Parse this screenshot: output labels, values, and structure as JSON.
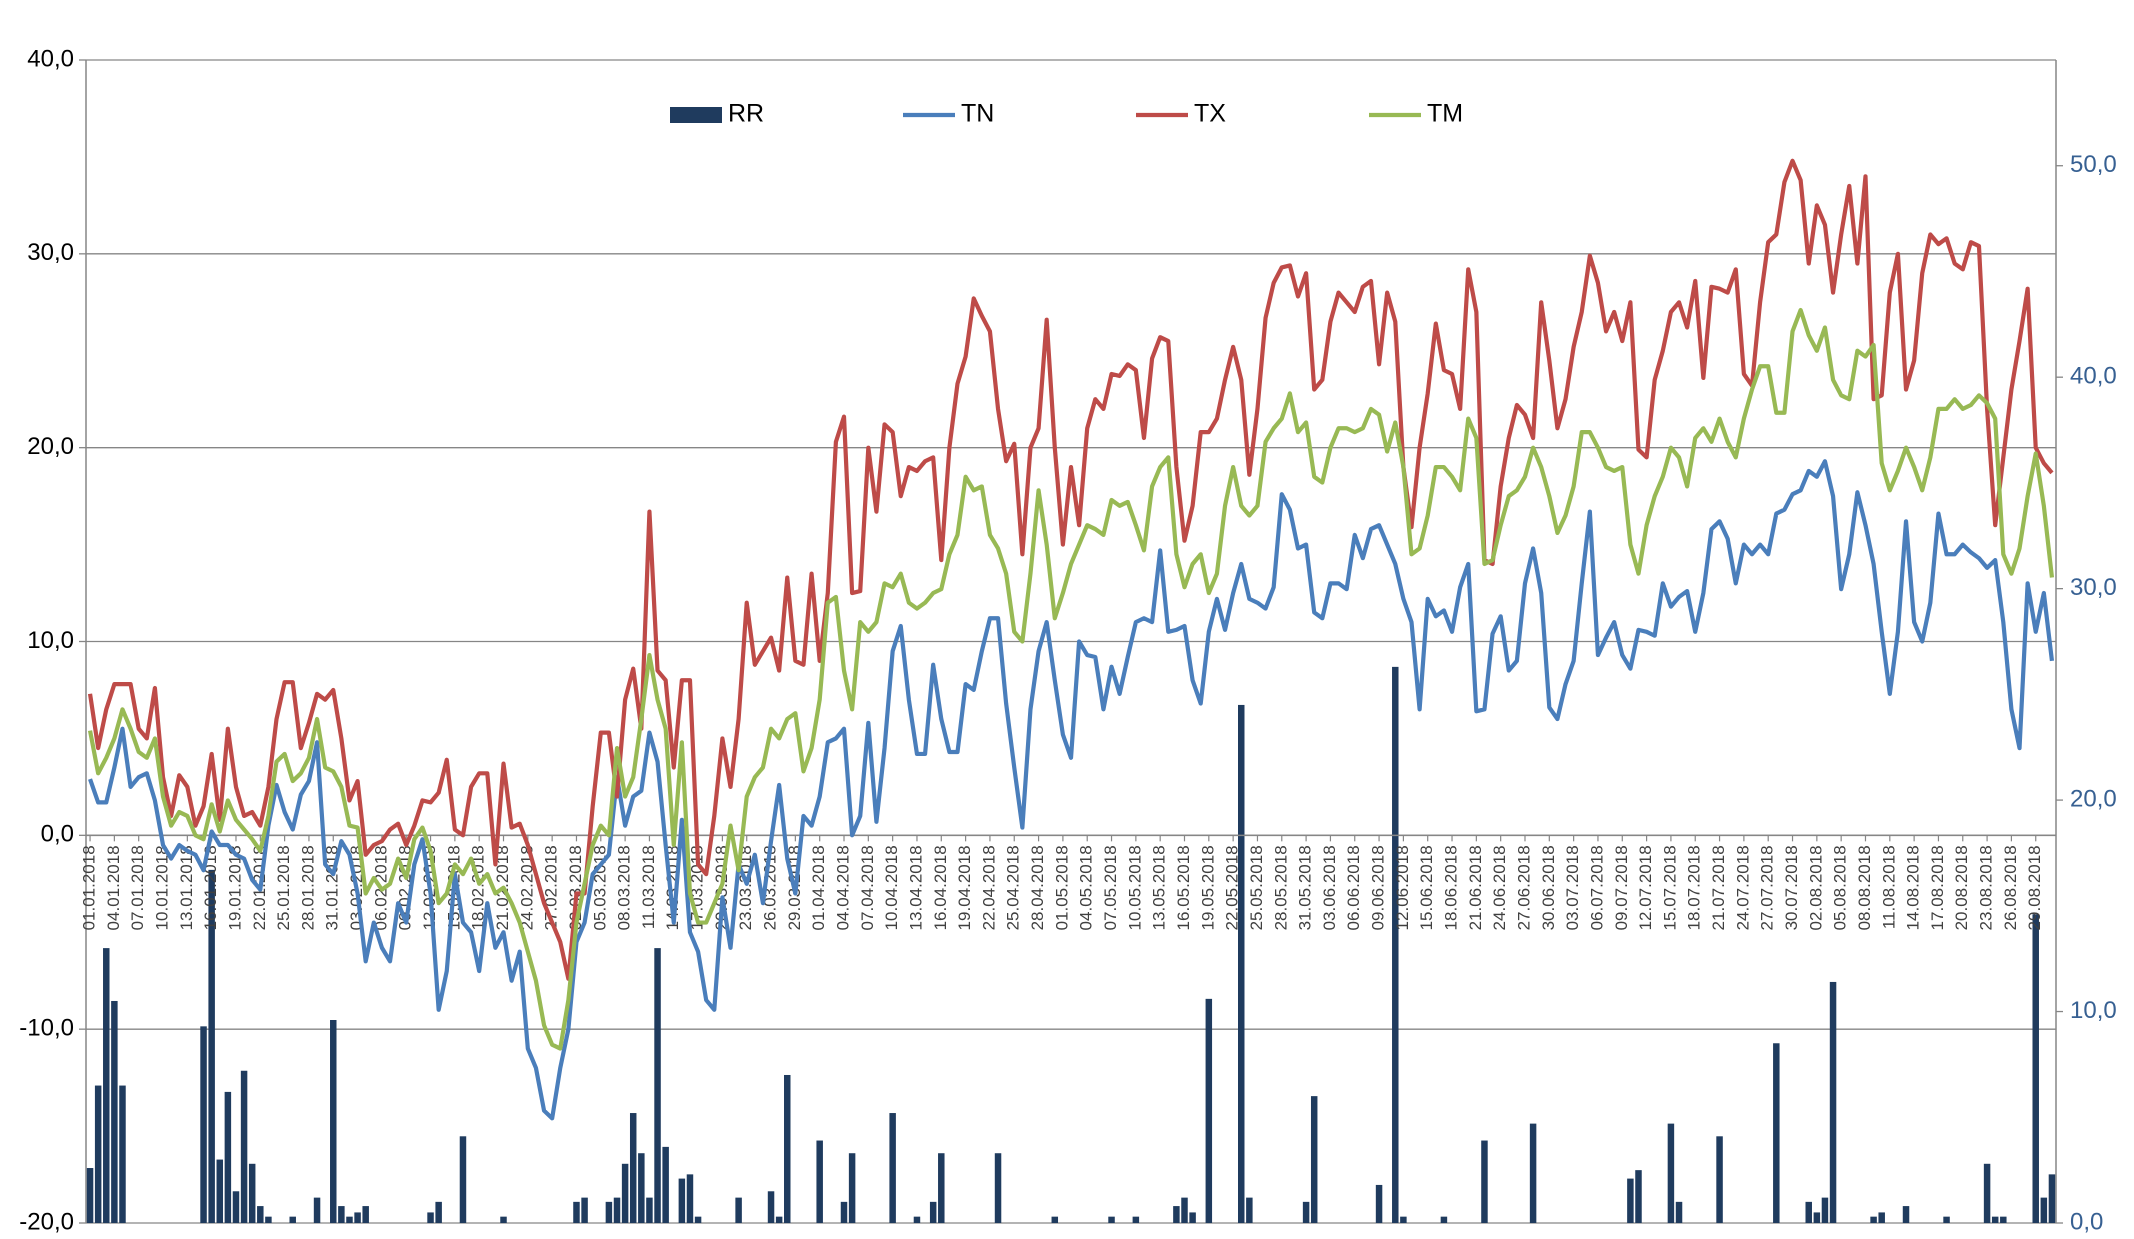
{
  "chart_data": {
    "type": "combo",
    "categories": [
      "01.01.2018",
      null,
      null,
      "04.01.2018",
      null,
      null,
      "07.01.2018",
      null,
      null,
      "10.01.2018",
      null,
      null,
      "13.01.2018",
      null,
      null,
      "16.01.2018",
      null,
      null,
      "19.01.2018",
      null,
      null,
      "22.01.2018",
      null,
      null,
      "25.01.2018",
      null,
      null,
      "28.01.2018",
      null,
      null,
      "31.01.2018",
      null,
      null,
      "03.02.2018",
      null,
      null,
      "06.02.2018",
      null,
      null,
      "09.02.2018",
      null,
      null,
      "12.02.2018",
      null,
      null,
      "15.02.2018",
      null,
      null,
      "18.02.2018",
      null,
      null,
      "21.02.2018",
      null,
      null,
      "24.02.2018",
      null,
      null,
      "27.02.2018",
      null,
      null,
      "02.03.2018",
      null,
      null,
      "05.03.2018",
      null,
      null,
      "08.03.2018",
      null,
      null,
      "11.03.2018",
      null,
      null,
      "14.03.2018",
      null,
      null,
      "17.03.2018",
      null,
      null,
      "20.03.2018",
      null,
      null,
      "23.03.2018",
      null,
      null,
      "26.03.2018",
      null,
      null,
      "29.03.2018",
      null,
      null,
      "01.04.2018",
      null,
      null,
      "04.04.2018",
      null,
      null,
      "07.04.2018",
      null,
      null,
      "10.04.2018",
      null,
      null,
      "13.04.2018",
      null,
      null,
      "16.04.2018",
      null,
      null,
      "19.04.2018",
      null,
      null,
      "22.04.2018",
      null,
      null,
      "25.04.2018",
      null,
      null,
      "28.04.2018",
      null,
      null,
      "01.05.2018",
      null,
      null,
      "04.05.2018",
      null,
      null,
      "07.05.2018",
      null,
      null,
      "10.05.2018",
      null,
      null,
      "13.05.2018",
      null,
      null,
      "16.05.2018",
      null,
      null,
      "19.05.2018",
      null,
      null,
      "22.05.2018",
      null,
      null,
      "25.05.2018",
      null,
      null,
      "28.05.2018",
      null,
      null,
      "31.05.2018",
      null,
      null,
      "03.06.2018",
      null,
      null,
      "06.06.2018",
      null,
      null,
      "09.06.2018",
      null,
      null,
      "12.06.2018",
      null,
      null,
      "15.06.2018",
      null,
      null,
      "18.06.2018",
      null,
      null,
      "21.06.2018",
      null,
      null,
      "24.06.2018",
      null,
      null,
      "27.06.2018",
      null,
      null,
      "30.06.2018",
      null,
      null,
      "03.07.2018",
      null,
      null,
      "06.07.2018",
      null,
      null,
      "09.07.2018",
      null,
      null,
      "12.07.2018",
      null,
      null,
      "15.07.2018",
      null,
      null,
      "18.07.2018",
      null,
      null,
      "21.07.2018",
      null,
      null,
      "24.07.2018",
      null,
      null,
      "27.07.2018",
      null,
      null,
      "30.07.2018",
      null,
      null,
      "02.08.2018",
      null,
      null,
      "05.08.2018",
      null,
      null,
      "08.08.2018",
      null,
      null,
      "11.08.2018",
      null,
      null,
      "14.08.2018",
      null,
      null,
      "17.08.2018",
      null,
      null,
      "20.08.2018",
      null,
      null,
      "23.08.2018",
      null,
      null,
      "26.08.2018",
      null,
      null,
      "29.08.2018",
      null,
      null
    ],
    "series": [
      {
        "name": "RR",
        "type": "bar",
        "axis": "y2",
        "color": "#1f3b5e",
        "values": [
          2.6,
          6.5,
          13,
          10.5,
          6.5,
          0,
          0,
          0,
          0,
          0,
          0,
          0,
          0,
          0,
          9.3,
          16.7,
          3,
          6.2,
          1.5,
          7.2,
          2.8,
          0.8,
          0.3,
          0,
          0,
          0.3,
          0,
          0,
          1.2,
          0,
          9.6,
          0.8,
          0.3,
          0.5,
          0.8,
          0,
          0,
          0,
          0,
          0,
          0,
          0,
          0.5,
          1,
          0,
          0,
          4.1,
          0,
          0,
          0,
          0,
          0.3,
          0,
          0,
          0,
          0,
          0,
          0,
          0,
          0,
          1,
          1.2,
          0,
          0,
          1,
          1.2,
          2.8,
          5.2,
          3.3,
          1.2,
          13,
          3.6,
          0,
          2.1,
          2.3,
          0.3,
          0,
          0,
          0,
          0,
          1.2,
          0,
          0,
          0,
          1.5,
          0.3,
          7,
          0,
          0,
          0,
          3.9,
          0,
          0,
          1,
          3.3,
          0,
          0,
          0,
          0,
          5.2,
          0,
          0,
          0.3,
          0,
          1,
          3.3,
          0,
          0,
          0,
          0,
          0,
          0,
          3.3,
          0,
          0,
          0,
          0,
          0,
          0,
          0.3,
          0,
          0,
          0,
          0,
          0,
          0,
          0.3,
          0,
          0,
          0.3,
          0,
          0,
          0,
          0,
          0.8,
          1.2,
          0.5,
          0,
          10.6,
          0,
          0,
          0,
          24.5,
          1.2,
          0,
          0,
          0,
          0,
          0,
          0,
          1,
          6,
          0,
          0,
          0,
          0,
          0,
          0,
          0,
          1.8,
          0,
          26.3,
          0.3,
          0,
          0,
          0,
          0,
          0.3,
          0,
          0,
          0,
          0,
          3.9,
          0,
          0,
          0,
          0,
          0,
          4.7,
          0,
          0,
          0,
          0,
          0,
          0,
          0,
          0,
          0,
          0,
          0,
          2.1,
          2.5,
          0,
          0,
          0,
          4.7,
          1,
          0,
          0,
          0,
          0,
          4.1,
          0,
          0,
          0,
          0,
          0,
          0,
          8.5,
          0,
          0,
          0,
          1,
          0.5,
          1.2,
          11.4,
          0,
          0,
          0,
          0,
          0.3,
          0.5,
          0,
          0,
          0.8,
          0,
          0,
          0,
          0,
          0.3,
          0,
          0,
          0,
          0,
          2.8,
          0.3,
          0.3,
          0,
          0,
          0,
          14.6,
          1.2,
          2.3
        ]
      },
      {
        "name": "TN",
        "type": "line",
        "color": "#4a7ebb",
        "values": [
          2.9,
          1.7,
          1.7,
          3.5,
          5.5,
          2.5,
          3,
          3.2,
          1.8,
          -0.5,
          -1.2,
          -0.5,
          -0.8,
          -1,
          -1.8,
          0.2,
          -0.5,
          -0.5,
          -1,
          -1.2,
          -2.3,
          -2.8,
          0.5,
          2.6,
          1.2,
          0.3,
          2.1,
          2.8,
          4.8,
          -1.5,
          -2,
          -0.3,
          -1,
          -3,
          -6.5,
          -4.5,
          -5.8,
          -6.5,
          -3.5,
          -4.5,
          -1.5,
          -0.2,
          -3,
          -9,
          -7,
          -2,
          -4.5,
          -5,
          -7,
          -3.5,
          -5.8,
          -5,
          -7.5,
          -6,
          -11,
          -12,
          -14.2,
          -14.6,
          -12,
          -10,
          -5.5,
          -4.5,
          -2,
          -1.5,
          -1,
          3,
          0.5,
          2,
          2.3,
          5.3,
          3.8,
          -0.5,
          -4.5,
          0.8,
          -5,
          -6,
          -8.5,
          -9,
          -3.2,
          -5.8,
          -1.5,
          -2.5,
          -1,
          -3.5,
          -0.3,
          2.6,
          -1.2,
          -3,
          1,
          0.5,
          2,
          4.8,
          5,
          5.5,
          0,
          1,
          5.8,
          0.7,
          4.5,
          9.5,
          10.8,
          7,
          4.2,
          4.2,
          8.8,
          6,
          4.3,
          4.3,
          7.8,
          7.5,
          9.5,
          11.2,
          11.2,
          6.8,
          3.5,
          0.4,
          6.5,
          9.5,
          11,
          8,
          5.2,
          4,
          10,
          9.3,
          9.2,
          6.5,
          8.7,
          7.3,
          9.2,
          11,
          11.2,
          11,
          14.7,
          10.5,
          10.6,
          10.8,
          8,
          6.8,
          10.5,
          12.2,
          10.6,
          12.5,
          14,
          12.2,
          12,
          11.7,
          12.8,
          17.6,
          16.8,
          14.8,
          15,
          11.5,
          11.2,
          13,
          13,
          12.7,
          15.5,
          14.3,
          15.8,
          16,
          15,
          14,
          12.2,
          11,
          6.5,
          12.2,
          11.3,
          11.6,
          10.5,
          12.8,
          14,
          6.4,
          6.5,
          10.4,
          11.3,
          8.5,
          9,
          13,
          14.8,
          12.5,
          6.6,
          6,
          7.8,
          9,
          13,
          16.7,
          9.3,
          10.2,
          11,
          9.3,
          8.6,
          10.6,
          10.5,
          10.3,
          13,
          11.8,
          12.3,
          12.6,
          10.5,
          12.5,
          15.8,
          16.2,
          15.3,
          13,
          15,
          14.5,
          15,
          14.5,
          16.6,
          16.8,
          17.6,
          17.8,
          18.8,
          18.5,
          19.3,
          17.5,
          12.7,
          14.5,
          17.7,
          16,
          14,
          10.5,
          7.3,
          10.5,
          16.2,
          11,
          10,
          12,
          16.6,
          14.5,
          14.5,
          15,
          14.6,
          14.3,
          13.8,
          14.2,
          11,
          6.5,
          4.5,
          13,
          10.5,
          12.5,
          9
        ]
      },
      {
        "name": "TX",
        "type": "line",
        "color": "#be4b48",
        "values": [
          7.3,
          4.5,
          6.5,
          7.8,
          7.8,
          7.8,
          5.5,
          5,
          7.6,
          3,
          1,
          3.1,
          2.5,
          0.5,
          1.5,
          4.2,
          0.8,
          5.5,
          2.5,
          1,
          1.2,
          0.5,
          2.5,
          6,
          7.9,
          7.9,
          4.5,
          5.8,
          7.3,
          7,
          7.5,
          5,
          1.8,
          2.8,
          -1,
          -0.5,
          -0.3,
          0.3,
          0.6,
          -0.5,
          0.5,
          1.8,
          1.7,
          2.2,
          3.9,
          0.3,
          0,
          2.5,
          3.2,
          3.2,
          -1.5,
          3.7,
          0.4,
          0.6,
          -0.5,
          -2,
          -3.5,
          -4.5,
          -5.5,
          -7.4,
          -3,
          -3,
          1.5,
          5.3,
          5.3,
          2,
          7,
          8.6,
          5.5,
          16.7,
          8.5,
          8,
          3.5,
          8,
          8,
          -1.5,
          -2,
          1,
          5,
          2.5,
          6,
          12,
          8.8,
          9.5,
          10.2,
          8.5,
          13.3,
          9,
          8.8,
          13.5,
          9,
          12.5,
          20.3,
          21.6,
          12.5,
          12.6,
          20,
          16.7,
          21.2,
          20.8,
          17.5,
          19,
          18.8,
          19.3,
          19.5,
          14.2,
          20,
          23.3,
          24.7,
          27.7,
          26.8,
          26,
          22,
          19.3,
          20.2,
          14.5,
          20,
          21,
          26.6,
          20,
          15,
          19,
          16,
          21,
          22.5,
          22,
          23.8,
          23.7,
          24.3,
          24,
          20.5,
          24.6,
          25.7,
          25.5,
          19,
          15.2,
          17,
          20.8,
          20.8,
          21.5,
          23.5,
          25.2,
          23.5,
          18.6,
          22,
          26.7,
          28.5,
          29.3,
          29.4,
          27.8,
          29,
          23,
          23.5,
          26.5,
          28,
          27.5,
          27,
          28.3,
          28.6,
          24.3,
          28,
          26.5,
          19,
          15.9,
          20,
          22.8,
          26.4,
          24,
          23.8,
          22,
          29.2,
          27,
          14.2,
          14,
          18,
          20.5,
          22.2,
          21.7,
          20.5,
          27.5,
          24.5,
          21,
          22.5,
          25.2,
          27,
          29.9,
          28.5,
          26,
          27,
          25.5,
          27.5,
          19.9,
          19.5,
          23.5,
          25,
          27,
          27.5,
          26.2,
          28.6,
          23.6,
          28.3,
          28.2,
          28,
          29.2,
          23.8,
          23.2,
          27.5,
          30.6,
          31,
          33.7,
          34.8,
          33.8,
          29.5,
          32.5,
          31.5,
          28,
          31,
          33.5,
          29.5,
          34,
          22.5,
          22.7,
          28,
          30,
          23,
          24.5,
          29,
          31,
          30.5,
          30.8,
          29.5,
          29.2,
          30.6,
          30.4,
          22,
          16,
          19.5,
          23,
          25.5,
          28.2,
          20,
          19.2,
          18.7
        ]
      },
      {
        "name": "TM",
        "type": "line",
        "color": "#98b954",
        "values": [
          5.4,
          3.2,
          4,
          5,
          6.5,
          5.5,
          4.3,
          4,
          5,
          2,
          0.5,
          1.2,
          1,
          0,
          -0.2,
          1.6,
          0.2,
          1.8,
          0.8,
          0.3,
          -0.2,
          -0.8,
          1,
          3.8,
          4.2,
          2.8,
          3.2,
          4,
          6,
          3.5,
          3.3,
          2.5,
          0.5,
          0.4,
          -3,
          -2.2,
          -2.8,
          -2.5,
          -1.2,
          -2.2,
          -0.2,
          0.4,
          -0.8,
          -3.5,
          -3,
          -1.5,
          -2,
          -1.2,
          -2.5,
          -2,
          -3,
          -2.7,
          -3.5,
          -4.5,
          -6,
          -7.5,
          -9.8,
          -10.8,
          -11,
          -8.5,
          -4.5,
          -2.5,
          -0.5,
          0.5,
          0,
          4.5,
          2,
          3,
          6,
          9.3,
          7,
          5.5,
          -0.5,
          4.8,
          -3,
          -4.5,
          -4.5,
          -3.5,
          -2.5,
          0.5,
          -1.8,
          2,
          3,
          3.5,
          5.5,
          5,
          6,
          6.3,
          3.3,
          4.5,
          7,
          12,
          12.3,
          8.5,
          6.5,
          11,
          10.5,
          11,
          13,
          12.8,
          13.5,
          12,
          11.7,
          12,
          12.5,
          12.7,
          14.5,
          15.5,
          18.5,
          17.8,
          18,
          15.5,
          14.8,
          13.5,
          10.5,
          10,
          13.5,
          17.8,
          15,
          11.2,
          12.5,
          14,
          15,
          16,
          15.8,
          15.5,
          17.3,
          17,
          17.2,
          16,
          14.7,
          18,
          19,
          19.5,
          14.5,
          12.8,
          14,
          14.5,
          12.5,
          13.5,
          17,
          19,
          17,
          16.5,
          17,
          20.3,
          21,
          21.5,
          22.8,
          20.8,
          21.3,
          18.5,
          18.2,
          20,
          21,
          21,
          20.8,
          21,
          22,
          21.7,
          19.8,
          21.3,
          19,
          14.5,
          14.8,
          16.5,
          19,
          19,
          18.5,
          17.8,
          21.5,
          20.5,
          14,
          14.2,
          16,
          17.5,
          17.8,
          18.5,
          20,
          19,
          17.5,
          15.6,
          16.5,
          18,
          20.8,
          20.8,
          20,
          19,
          18.8,
          19,
          15,
          13.5,
          16,
          17.5,
          18.5,
          20,
          19.5,
          18,
          20.5,
          21,
          20.3,
          21.5,
          20.3,
          19.5,
          21.5,
          23,
          24.2,
          24.2,
          21.8,
          21.8,
          26,
          27.1,
          25.8,
          25,
          26.2,
          23.5,
          22.7,
          22.5,
          25,
          24.7,
          25.3,
          19.2,
          17.8,
          18.8,
          20,
          19,
          17.8,
          19.5,
          22,
          22,
          22.5,
          22,
          22.2,
          22.7,
          22.3,
          21.5,
          14.5,
          13.5,
          14.8,
          17.5,
          19.7,
          17,
          13.3
        ]
      }
    ],
    "ylim": [
      -20,
      40
    ],
    "yticks": [
      {
        "value": -20,
        "label": "-20,0"
      },
      {
        "value": -10,
        "label": "-10,0"
      },
      {
        "value": 0,
        "label": "0,0"
      },
      {
        "value": 10,
        "label": "10,0"
      },
      {
        "value": 20,
        "label": "20,0"
      },
      {
        "value": 30,
        "label": "30,0"
      },
      {
        "value": 40,
        "label": "40,0"
      }
    ],
    "y2lim": [
      0,
      55
    ],
    "y2ticks": [
      {
        "value": 0,
        "label": "0,0"
      },
      {
        "value": 10,
        "label": "10,0"
      },
      {
        "value": 20,
        "label": "20,0"
      },
      {
        "value": 30,
        "label": "30,0"
      },
      {
        "value": 40,
        "label": "40,0"
      },
      {
        "value": 50,
        "label": "50,0"
      }
    ],
    "grid": true,
    "legend": "top"
  }
}
